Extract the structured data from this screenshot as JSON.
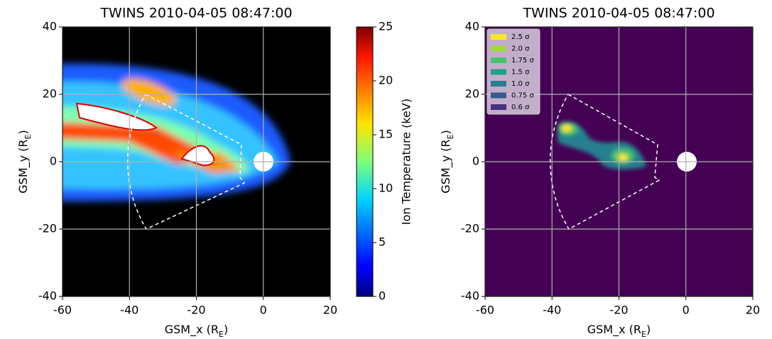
{
  "chart_data": [
    {
      "type": "heatmap",
      "title": "TWINS 2010-04-05 08:47:00",
      "xlabel": [
        "GSM_x (R",
        "E",
        ")"
      ],
      "ylabel": [
        "GSM_y (R",
        "E",
        ")"
      ],
      "xlim": [
        -60,
        20
      ],
      "ylim": [
        -40,
        40
      ],
      "xticks": [
        -60,
        -40,
        -20,
        0,
        20
      ],
      "yticks": [
        -40,
        -20,
        0,
        20,
        40
      ],
      "grid": true,
      "colorbar": {
        "label": "Ion Temperature (keV)",
        "lim": [
          0,
          25
        ],
        "ticks": [
          0,
          5,
          10,
          15,
          20,
          25
        ]
      }
    },
    {
      "type": "heatmap",
      "title": "TWINS 2010-04-05 08:47:00",
      "xlabel": [
        "GSM_x (R",
        "E",
        ")"
      ],
      "ylabel": [
        "GSM_y (R",
        "E",
        ")"
      ],
      "xlim": [
        -60,
        20
      ],
      "ylim": [
        -40,
        40
      ],
      "xticks": [
        -60,
        -40,
        -20,
        0,
        20
      ],
      "yticks": [
        -40,
        -20,
        0,
        20,
        40
      ],
      "grid": true,
      "legend": [
        {
          "label": "2.5 σ",
          "color": "#fde725"
        },
        {
          "label": "2.0 σ",
          "color": "#a0da39"
        },
        {
          "label": "1.75 σ",
          "color": "#4ac16d"
        },
        {
          "label": "1.5 σ",
          "color": "#1fa187"
        },
        {
          "label": "1.0 σ",
          "color": "#277f8e"
        },
        {
          "label": "0.75 σ",
          "color": "#365c8d"
        },
        {
          "label": "0.6 σ",
          "color": "#46327e"
        }
      ]
    }
  ]
}
